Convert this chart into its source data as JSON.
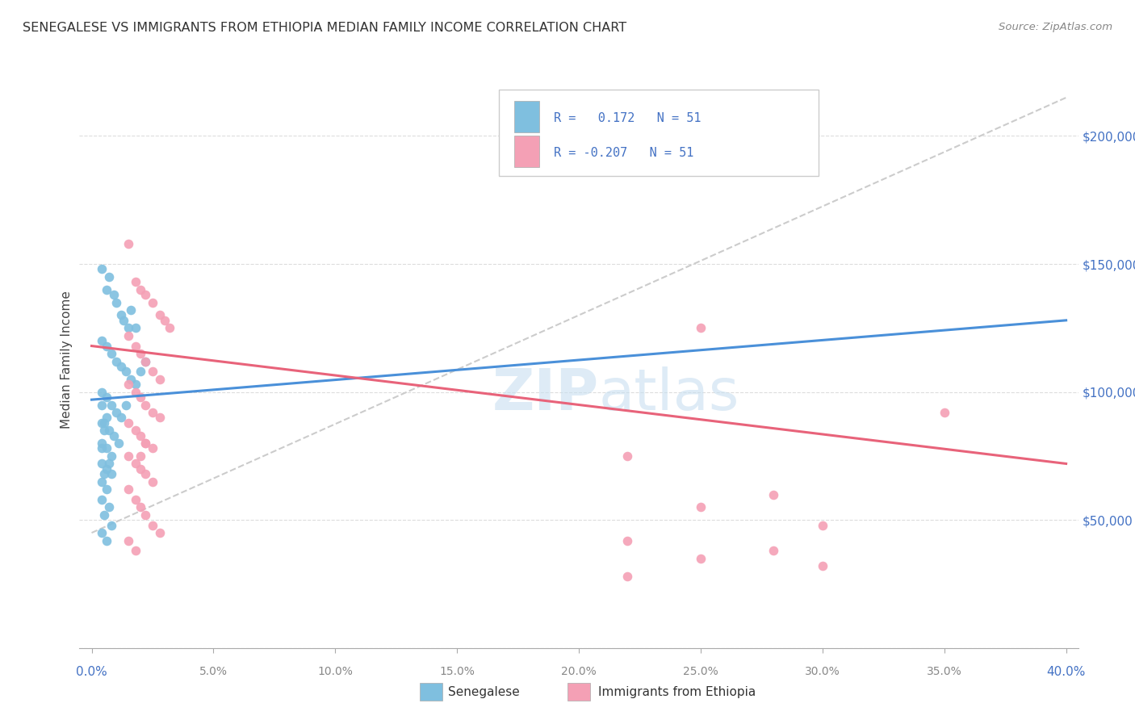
{
  "title": "SENEGALESE VS IMMIGRANTS FROM ETHIOPIA MEDIAN FAMILY INCOME CORRELATION CHART",
  "source": "Source: ZipAtlas.com",
  "ylabel": "Median Family Income",
  "xlim": [
    -0.005,
    0.405
  ],
  "ylim": [
    0,
    225000
  ],
  "xticks": [
    0.0,
    0.05,
    0.1,
    0.15,
    0.2,
    0.25,
    0.3,
    0.35,
    0.4
  ],
  "xtick_labels": [
    "0.0%",
    "5.0%",
    "10.0%",
    "15.0%",
    "20.0%",
    "25.0%",
    "30.0%",
    "35.0%",
    "40.0%"
  ],
  "yticks": [
    0,
    50000,
    100000,
    150000,
    200000
  ],
  "ytick_labels_right": [
    "",
    "$50,000",
    "$100,000",
    "$150,000",
    "$200,000"
  ],
  "blue_color": "#7fbfdf",
  "pink_color": "#f4a0b5",
  "blue_line": [
    [
      0.0,
      0.4
    ],
    [
      97000,
      128000
    ]
  ],
  "pink_line": [
    [
      0.0,
      0.4
    ],
    [
      118000,
      72000
    ]
  ],
  "dashed_line": [
    [
      0.0,
      0.4
    ],
    [
      45000,
      215000
    ]
  ],
  "blue_x": [
    0.004,
    0.006,
    0.007,
    0.009,
    0.01,
    0.012,
    0.013,
    0.015,
    0.016,
    0.018,
    0.004,
    0.006,
    0.008,
    0.01,
    0.012,
    0.014,
    0.016,
    0.018,
    0.02,
    0.022,
    0.004,
    0.006,
    0.008,
    0.01,
    0.012,
    0.014,
    0.005,
    0.007,
    0.009,
    0.011,
    0.004,
    0.006,
    0.008,
    0.004,
    0.006,
    0.008,
    0.004,
    0.006,
    0.004,
    0.007,
    0.005,
    0.008,
    0.004,
    0.006,
    0.004,
    0.007,
    0.005,
    0.004,
    0.006,
    0.004,
    0.005
  ],
  "blue_y": [
    148000,
    140000,
    145000,
    138000,
    135000,
    130000,
    128000,
    125000,
    132000,
    125000,
    120000,
    118000,
    115000,
    112000,
    110000,
    108000,
    105000,
    103000,
    108000,
    112000,
    100000,
    98000,
    95000,
    92000,
    90000,
    95000,
    88000,
    85000,
    83000,
    80000,
    80000,
    78000,
    75000,
    72000,
    70000,
    68000,
    65000,
    62000,
    58000,
    55000,
    52000,
    48000,
    45000,
    42000,
    78000,
    72000,
    68000,
    95000,
    90000,
    88000,
    85000
  ],
  "pink_x": [
    0.015,
    0.018,
    0.02,
    0.022,
    0.025,
    0.028,
    0.03,
    0.032,
    0.015,
    0.018,
    0.02,
    0.022,
    0.025,
    0.028,
    0.015,
    0.018,
    0.02,
    0.022,
    0.025,
    0.028,
    0.015,
    0.018,
    0.02,
    0.022,
    0.025,
    0.015,
    0.018,
    0.02,
    0.022,
    0.025,
    0.015,
    0.018,
    0.02,
    0.022,
    0.025,
    0.028,
    0.015,
    0.018,
    0.02,
    0.022,
    0.25,
    0.35,
    0.22,
    0.25,
    0.28,
    0.3,
    0.22,
    0.28,
    0.25,
    0.3,
    0.22
  ],
  "pink_y": [
    158000,
    143000,
    140000,
    138000,
    135000,
    130000,
    128000,
    125000,
    122000,
    118000,
    115000,
    112000,
    108000,
    105000,
    103000,
    100000,
    98000,
    95000,
    92000,
    90000,
    88000,
    85000,
    83000,
    80000,
    78000,
    75000,
    72000,
    70000,
    68000,
    65000,
    62000,
    58000,
    55000,
    52000,
    48000,
    45000,
    42000,
    38000,
    75000,
    80000,
    125000,
    92000,
    75000,
    55000,
    60000,
    48000,
    42000,
    38000,
    35000,
    32000,
    28000
  ],
  "legend_text1": "R =   0.172   N = 51",
  "legend_text2": "R = -0.207   N = 51",
  "legend_label1": "Senegalese",
  "legend_label2": "Immigrants from Ethiopia"
}
